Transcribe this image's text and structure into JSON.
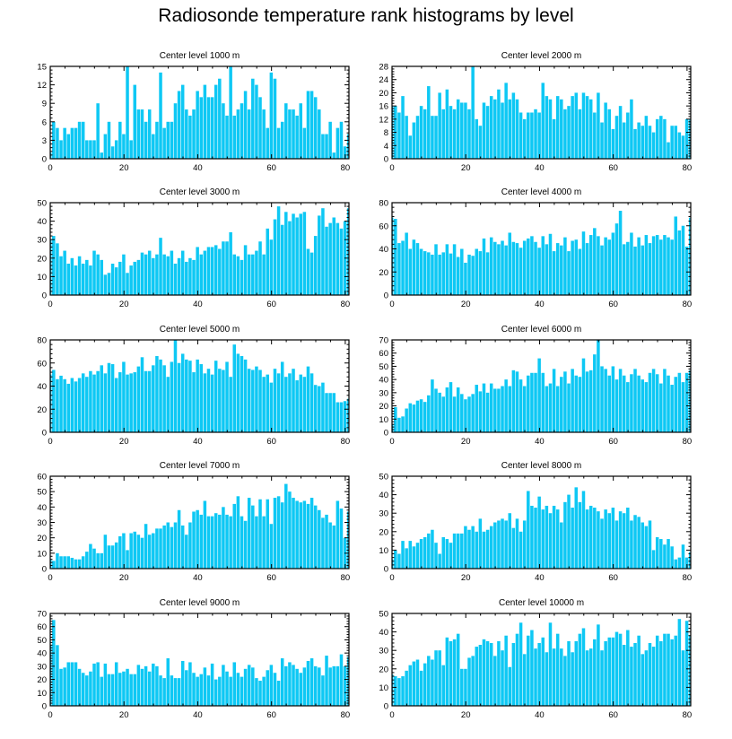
{
  "title": "Radiosonde temperature rank histograms by level",
  "colors": {
    "bar": "#0ec8f4",
    "axis": "#000000",
    "background": "#ffffff"
  },
  "chart_data": [
    {
      "type": "bar",
      "title": "Center level 1000 m",
      "xlim": [
        0,
        81
      ],
      "ylim": [
        0,
        15
      ],
      "yticks": [
        0,
        3,
        6,
        9,
        12,
        15
      ],
      "xticks": [
        0,
        20,
        40,
        60,
        80
      ],
      "values": [
        1,
        6,
        5,
        3,
        5,
        4,
        5,
        5,
        6,
        6,
        3,
        3,
        3,
        9,
        1,
        4,
        6,
        2,
        3,
        6,
        4,
        15,
        3,
        12,
        8,
        8,
        6,
        8,
        4,
        6,
        14,
        5,
        6,
        6,
        9,
        11,
        12,
        8,
        7,
        8,
        11,
        10,
        12,
        10,
        10,
        12,
        13,
        9,
        7,
        15,
        7,
        8,
        9,
        11,
        8,
        13,
        12,
        10,
        8,
        5,
        14,
        13,
        5,
        6,
        9,
        8,
        8,
        7,
        9,
        5,
        11,
        11,
        10,
        8,
        4,
        4,
        6,
        1,
        5,
        6,
        2,
        4
      ]
    },
    {
      "type": "bar",
      "title": "Center level 2000 m",
      "xlim": [
        0,
        81
      ],
      "ylim": [
        0,
        28
      ],
      "yticks": [
        0,
        4,
        8,
        12,
        16,
        20,
        24,
        28
      ],
      "xticks": [
        0,
        20,
        40,
        60,
        80
      ],
      "values": [
        16,
        16,
        14,
        19,
        13,
        7,
        11,
        13,
        16,
        15,
        22,
        13,
        13,
        20,
        15,
        21,
        16,
        15,
        18,
        17,
        17,
        15,
        28,
        12,
        10,
        17,
        16,
        19,
        18,
        21,
        17,
        23,
        18,
        20,
        18,
        14,
        12,
        14,
        14,
        15,
        14,
        23,
        19,
        18,
        12,
        19,
        18,
        15,
        16,
        19,
        20,
        15,
        20,
        19,
        18,
        14,
        20,
        11,
        17,
        15,
        9,
        13,
        16,
        11,
        14,
        18,
        9,
        11,
        10,
        13,
        10,
        8,
        12,
        13,
        12,
        5,
        10,
        10,
        8,
        7,
        12,
        12
      ]
    },
    {
      "type": "bar",
      "title": "Center level 3000 m",
      "xlim": [
        0,
        81
      ],
      "ylim": [
        0,
        50
      ],
      "yticks": [
        0,
        10,
        20,
        30,
        40,
        50
      ],
      "xticks": [
        0,
        20,
        40,
        60,
        80
      ],
      "values": [
        30,
        32,
        28,
        21,
        24,
        17,
        20,
        16,
        21,
        17,
        19,
        16,
        24,
        22,
        19,
        11,
        12,
        17,
        15,
        18,
        22,
        12,
        16,
        18,
        19,
        23,
        22,
        24,
        20,
        22,
        31,
        22,
        21,
        24,
        17,
        20,
        24,
        18,
        20,
        19,
        26,
        22,
        24,
        26,
        26,
        27,
        25,
        29,
        29,
        34,
        22,
        21,
        19,
        27,
        22,
        22,
        24,
        29,
        22,
        36,
        30,
        41,
        48,
        38,
        45,
        40,
        44,
        42,
        44,
        45,
        25,
        23,
        32,
        43,
        47,
        37,
        39,
        42,
        39,
        36,
        40,
        47
      ]
    },
    {
      "type": "bar",
      "title": "Center level 4000 m",
      "xlim": [
        0,
        81
      ],
      "ylim": [
        0,
        80
      ],
      "yticks": [
        0,
        20,
        40,
        60,
        80
      ],
      "xticks": [
        0,
        20,
        40,
        60,
        80
      ],
      "values": [
        67,
        66,
        45,
        47,
        54,
        40,
        48,
        45,
        40,
        38,
        37,
        35,
        44,
        35,
        37,
        44,
        36,
        44,
        33,
        40,
        28,
        35,
        34,
        40,
        38,
        49,
        37,
        50,
        46,
        44,
        47,
        43,
        54,
        46,
        45,
        41,
        47,
        49,
        51,
        46,
        41,
        51,
        44,
        53,
        38,
        45,
        43,
        50,
        38,
        47,
        48,
        40,
        55,
        45,
        52,
        58,
        51,
        43,
        50,
        48,
        54,
        62,
        73,
        44,
        46,
        54,
        42,
        50,
        43,
        52,
        45,
        51,
        52,
        48,
        52,
        50,
        48,
        68,
        56,
        60,
        42,
        67
      ]
    },
    {
      "type": "bar",
      "title": "Center level 5000 m",
      "xlim": [
        0,
        81
      ],
      "ylim": [
        0,
        80
      ],
      "yticks": [
        0,
        20,
        40,
        60,
        80
      ],
      "xticks": [
        0,
        20,
        40,
        60,
        80
      ],
      "values": [
        50,
        54,
        46,
        49,
        46,
        42,
        47,
        44,
        47,
        51,
        48,
        53,
        50,
        53,
        58,
        51,
        60,
        59,
        47,
        52,
        61,
        50,
        51,
        52,
        57,
        65,
        53,
        53,
        58,
        66,
        63,
        58,
        48,
        61,
        80,
        60,
        68,
        63,
        62,
        52,
        63,
        59,
        51,
        55,
        50,
        62,
        55,
        54,
        61,
        48,
        76,
        68,
        66,
        63,
        55,
        54,
        57,
        54,
        48,
        50,
        43,
        55,
        51,
        61,
        48,
        51,
        55,
        45,
        50,
        48,
        57,
        51,
        41,
        40,
        43,
        34,
        34,
        34,
        26,
        26,
        27,
        29
      ]
    },
    {
      "type": "bar",
      "title": "Center level 6000 m",
      "xlim": [
        0,
        81
      ],
      "ylim": [
        0,
        70
      ],
      "yticks": [
        0,
        10,
        20,
        30,
        40,
        50,
        60,
        70
      ],
      "xticks": [
        0,
        20,
        40,
        60,
        80
      ],
      "values": [
        6,
        19,
        11,
        12,
        18,
        22,
        21,
        24,
        25,
        23,
        28,
        40,
        33,
        30,
        27,
        34,
        38,
        27,
        34,
        29,
        25,
        27,
        29,
        36,
        31,
        37,
        30,
        37,
        33,
        33,
        35,
        40,
        35,
        47,
        46,
        40,
        35,
        43,
        45,
        45,
        56,
        45,
        35,
        37,
        48,
        35,
        42,
        46,
        37,
        48,
        43,
        42,
        56,
        46,
        47,
        59,
        70,
        50,
        48,
        43,
        50,
        40,
        48,
        43,
        38,
        44,
        48,
        43,
        40,
        38,
        45,
        48,
        44,
        37,
        48,
        43,
        36,
        42,
        45,
        38,
        45,
        47
      ]
    },
    {
      "type": "bar",
      "title": "Center level 7000 m",
      "xlim": [
        0,
        81
      ],
      "ylim": [
        0,
        60
      ],
      "yticks": [
        0,
        10,
        20,
        30,
        40,
        50,
        60
      ],
      "xticks": [
        0,
        20,
        40,
        60,
        80
      ],
      "values": [
        6,
        5,
        10,
        8,
        8,
        8,
        7,
        6,
        6,
        8,
        11,
        16,
        13,
        10,
        10,
        22,
        15,
        15,
        17,
        21,
        23,
        12,
        23,
        24,
        22,
        20,
        29,
        22,
        23,
        26,
        26,
        28,
        30,
        27,
        30,
        38,
        28,
        22,
        30,
        37,
        38,
        35,
        44,
        34,
        34,
        36,
        35,
        40,
        35,
        34,
        42,
        47,
        34,
        31,
        46,
        41,
        34,
        45,
        34,
        45,
        29,
        46,
        47,
        43,
        55,
        50,
        46,
        44,
        43,
        44,
        42,
        46,
        41,
        38,
        33,
        35,
        30,
        28,
        44,
        39,
        20,
        37
      ]
    },
    {
      "type": "bar",
      "title": "Center level 8000 m",
      "xlim": [
        0,
        81
      ],
      "ylim": [
        0,
        50
      ],
      "yticks": [
        0,
        10,
        20,
        30,
        40,
        50
      ],
      "xticks": [
        0,
        20,
        40,
        60,
        80
      ],
      "values": [
        5,
        10,
        8,
        15,
        11,
        15,
        12,
        14,
        16,
        17,
        19,
        21,
        14,
        8,
        17,
        16,
        14,
        19,
        19,
        19,
        23,
        21,
        23,
        20,
        27,
        20,
        21,
        23,
        25,
        26,
        27,
        26,
        30,
        22,
        27,
        20,
        26,
        42,
        34,
        33,
        39,
        32,
        34,
        30,
        34,
        32,
        25,
        36,
        40,
        33,
        44,
        36,
        42,
        32,
        34,
        33,
        31,
        27,
        32,
        30,
        33,
        26,
        31,
        30,
        33,
        26,
        29,
        28,
        25,
        23,
        26,
        10,
        17,
        16,
        13,
        16,
        12,
        5,
        6,
        13,
        6,
        9
      ]
    },
    {
      "type": "bar",
      "title": "Center level 9000 m",
      "xlim": [
        0,
        81
      ],
      "ylim": [
        0,
        70
      ],
      "yticks": [
        0,
        10,
        20,
        30,
        40,
        50,
        60,
        70
      ],
      "xticks": [
        0,
        20,
        40,
        60,
        80
      ],
      "values": [
        46,
        65,
        46,
        28,
        29,
        33,
        33,
        33,
        28,
        25,
        23,
        26,
        32,
        33,
        22,
        32,
        24,
        24,
        33,
        25,
        26,
        28,
        24,
        24,
        31,
        28,
        30,
        26,
        32,
        30,
        23,
        21,
        36,
        23,
        21,
        21,
        34,
        27,
        33,
        25,
        22,
        24,
        29,
        23,
        32,
        20,
        22,
        31,
        26,
        22,
        33,
        25,
        22,
        28,
        31,
        29,
        21,
        19,
        22,
        27,
        31,
        25,
        19,
        36,
        30,
        33,
        31,
        28,
        25,
        29,
        34,
        36,
        30,
        29,
        23,
        38,
        29,
        30,
        30,
        39,
        30,
        37
      ]
    },
    {
      "type": "bar",
      "title": "Center level 10000 m",
      "xlim": [
        0,
        81
      ],
      "ylim": [
        0,
        50
      ],
      "yticks": [
        0,
        10,
        20,
        30,
        40,
        50
      ],
      "xticks": [
        0,
        20,
        40,
        60,
        80
      ],
      "values": [
        17,
        16,
        15,
        16,
        19,
        22,
        24,
        25,
        19,
        23,
        27,
        25,
        30,
        30,
        22,
        37,
        35,
        36,
        39,
        20,
        20,
        26,
        27,
        32,
        33,
        36,
        35,
        34,
        27,
        35,
        30,
        38,
        21,
        34,
        39,
        45,
        28,
        38,
        41,
        31,
        34,
        37,
        29,
        45,
        31,
        39,
        31,
        27,
        35,
        29,
        35,
        39,
        42,
        30,
        31,
        36,
        44,
        30,
        35,
        37,
        37,
        40,
        39,
        33,
        41,
        32,
        34,
        38,
        28,
        30,
        34,
        32,
        38,
        35,
        39,
        39,
        36,
        38,
        47,
        30,
        46,
        38
      ]
    }
  ]
}
